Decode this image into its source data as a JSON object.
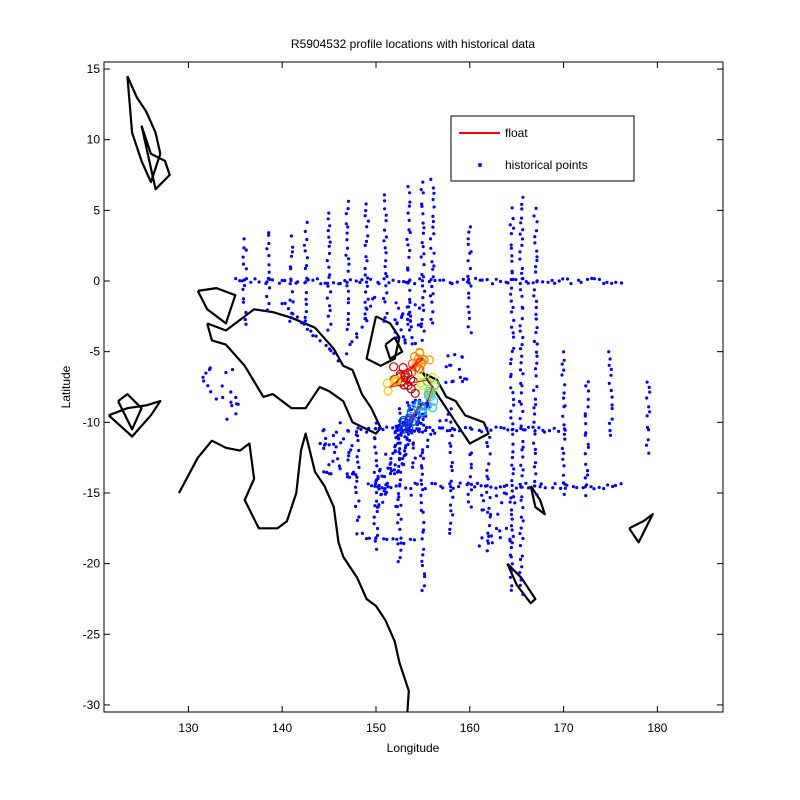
{
  "chart_data": {
    "type": "scatter",
    "title": "R5904532 profile locations with historical data",
    "xlabel": "Longitude",
    "ylabel": "Latitude",
    "xlim": [
      121,
      187
    ],
    "ylim": [
      -30.5,
      15.5
    ],
    "xticks": [
      130,
      140,
      150,
      160,
      170,
      180
    ],
    "yticks": [
      15,
      10,
      5,
      0,
      -5,
      -10,
      -15,
      -20,
      -25,
      -30
    ],
    "grid": false,
    "legend_position": "top-right",
    "legend": [
      {
        "label": "float",
        "marker": "line",
        "color": "#ff0000"
      },
      {
        "label": "historical points",
        "marker": "dot",
        "color": "#0000ff"
      }
    ],
    "historical_tracks": [
      {
        "lon": [
          138.5,
          138.5
        ],
        "lat": [
          3.5,
          -2.0
        ]
      },
      {
        "lon": [
          142.5,
          142.5
        ],
        "lat": [
          4.0,
          -3.0
        ]
      },
      {
        "lon": [
          145.0,
          145.0
        ],
        "lat": [
          5.0,
          -3.5
        ]
      },
      {
        "lon": [
          147.0,
          147.0
        ],
        "lat": [
          5.5,
          -3.5
        ]
      },
      {
        "lon": [
          149.0,
          149.0
        ],
        "lat": [
          5.5,
          -3.0
        ]
      },
      {
        "lon": [
          151.0,
          151.0
        ],
        "lat": [
          6.0,
          -3.0
        ]
      },
      {
        "lon": [
          153.5,
          153.5
        ],
        "lat": [
          6.5,
          -3.0
        ]
      },
      {
        "lon": [
          155.0,
          155.0
        ],
        "lat": [
          7.0,
          -4.0
        ]
      },
      {
        "lon": [
          156.0,
          156.0
        ],
        "lat": [
          7.0,
          -3.0
        ]
      },
      {
        "lon": [
          160.0,
          160.0
        ],
        "lat": [
          4.0,
          -3.5
        ]
      },
      {
        "lon": [
          164.5,
          164.5
        ],
        "lat": [
          5.0,
          -22.0
        ]
      },
      {
        "lon": [
          165.5,
          165.5
        ],
        "lat": [
          6.0,
          -22.0
        ]
      },
      {
        "lon": [
          167.0,
          167.0
        ],
        "lat": [
          5.0,
          -15.0
        ]
      },
      {
        "lon": [
          135.0,
          176.0
        ],
        "lat": [
          0.0,
          0.0
        ]
      },
      {
        "lon": [
          148.0,
          148.0
        ],
        "lat": [
          -11.0,
          -17.0
        ]
      },
      {
        "lon": [
          150.0,
          150.0
        ],
        "lat": [
          -10.0,
          -19.0
        ]
      },
      {
        "lon": [
          152.5,
          152.5
        ],
        "lat": [
          -9.0,
          -20.0
        ]
      },
      {
        "lon": [
          155.0,
          155.0
        ],
        "lat": [
          -12.0,
          -22.0
        ]
      },
      {
        "lon": [
          158.0,
          158.0
        ],
        "lat": [
          -10.0,
          -18.0
        ]
      },
      {
        "lon": [
          160.0,
          160.0
        ],
        "lat": [
          -12.0,
          -16.0
        ]
      },
      {
        "lon": [
          162.0,
          162.0
        ],
        "lat": [
          -11.0,
          -19.0
        ]
      },
      {
        "lon": [
          170.0,
          170.0
        ],
        "lat": [
          -5.0,
          -15.0
        ]
      },
      {
        "lon": [
          172.5,
          172.5
        ],
        "lat": [
          -7.0,
          -15.0
        ]
      },
      {
        "lon": [
          149.0,
          176.0
        ],
        "lat": [
          -14.5,
          -14.5
        ]
      },
      {
        "lon": [
          148.0,
          170.0
        ],
        "lat": [
          -10.5,
          -10.5
        ]
      },
      {
        "lon": [
          140.0,
          146.0
        ],
        "lat": [
          -1.5,
          -5.5
        ]
      },
      {
        "lon": [
          147.0,
          150.0
        ],
        "lat": [
          -5.0,
          -1.0
        ]
      },
      {
        "lon": [
          154.0,
          158.0
        ],
        "lat": [
          -13.0,
          -9.0
        ]
      },
      {
        "lon": [
          150.0,
          153.0
        ],
        "lat": [
          -16.0,
          -12.0
        ]
      },
      {
        "lon": [
          148.0,
          154.0
        ],
        "lat": [
          -18.0,
          -18.5
        ]
      },
      {
        "lon": [
          136.0,
          136.0
        ],
        "lat": [
          3.0,
          -3.0
        ]
      },
      {
        "lon": [
          141.0,
          141.0
        ],
        "lat": [
          3.0,
          -3.0
        ]
      },
      {
        "lon": [
          175.0,
          175.0
        ],
        "lat": [
          -5.0,
          -11.0
        ]
      },
      {
        "lon": [
          179.0,
          179.0
        ],
        "lat": [
          -7.0,
          -12.0
        ]
      }
    ],
    "historical_clusters": [
      {
        "lon": 153.5,
        "lat": -3.0,
        "spread": 1.5,
        "n": 30
      },
      {
        "lon": 154.5,
        "lat": -9.5,
        "spread": 1.2,
        "n": 60
      },
      {
        "lon": 153.0,
        "lat": -11.0,
        "spread": 1.0,
        "n": 40
      },
      {
        "lon": 146.0,
        "lat": -12.0,
        "spread": 2.0,
        "n": 40
      },
      {
        "lon": 152.0,
        "lat": -14.0,
        "spread": 2.0,
        "n": 40
      },
      {
        "lon": 163.0,
        "lat": -17.0,
        "spread": 2.0,
        "n": 25
      },
      {
        "lon": 133.5,
        "lat": -8.0,
        "spread": 2.0,
        "n": 20
      },
      {
        "lon": 158.5,
        "lat": -6.0,
        "spread": 1.2,
        "n": 15
      }
    ],
    "float_profiles": [
      {
        "lon": 153.0,
        "lat": -7.0,
        "color": "#8b0000"
      },
      {
        "lon": 153.5,
        "lat": -7.5,
        "color": "#b00000"
      },
      {
        "lon": 152.5,
        "lat": -6.5,
        "color": "#dd0000"
      },
      {
        "lon": 154.0,
        "lat": -6.0,
        "color": "#ff4400"
      },
      {
        "lon": 154.5,
        "lat": -5.5,
        "color": "#ff7700"
      },
      {
        "lon": 155.0,
        "lat": -5.5,
        "color": "#ff9900"
      },
      {
        "lon": 151.5,
        "lat": -7.5,
        "color": "#ffcc00"
      },
      {
        "lon": 155.5,
        "lat": -7.0,
        "color": "#ccee33"
      },
      {
        "lon": 156.0,
        "lat": -7.5,
        "color": "#66dd66"
      },
      {
        "lon": 155.5,
        "lat": -8.5,
        "color": "#33cccc"
      },
      {
        "lon": 154.5,
        "lat": -9.0,
        "color": "#00aaff"
      },
      {
        "lon": 154.0,
        "lat": -9.5,
        "color": "#0066ff"
      },
      {
        "lon": 153.5,
        "lat": -10.0,
        "color": "#0033dd"
      }
    ],
    "coastlines": [
      {
        "lon": [
          123.5,
          124.5,
          125.5,
          126.5,
          127.0,
          126.0,
          125.0,
          124.0,
          123.5
        ],
        "lat": [
          14.5,
          13.0,
          12.0,
          10.5,
          9.0,
          7.0,
          8.5,
          10.5,
          14.5
        ]
      },
      {
        "lon": [
          125.0,
          126.0,
          127.5,
          128.0,
          126.5,
          125.0
        ],
        "lat": [
          11.0,
          9.0,
          8.5,
          7.5,
          6.5,
          11.0
        ]
      },
      {
        "lon": [
          122.5,
          123.5,
          125.0,
          124.0,
          122.5
        ],
        "lat": [
          -8.5,
          -8.0,
          -9.0,
          -10.5,
          -8.5
        ]
      },
      {
        "lon": [
          121.5,
          123.5,
          125.5,
          127.0,
          126.0,
          124.0,
          121.5
        ],
        "lat": [
          -9.5,
          -9.0,
          -8.8,
          -8.5,
          -9.5,
          -11.0,
          -9.5
        ]
      },
      {
        "lon": [
          131.0,
          133.0,
          135.0,
          134.0,
          132.0,
          131.0
        ],
        "lat": [
          -0.7,
          -0.5,
          -1.0,
          -3.0,
          -2.0,
          -0.7
        ]
      },
      {
        "lon": [
          132.0,
          134.0,
          137.0,
          139.0,
          141.0,
          143.5,
          145.5,
          146.5,
          147.5,
          148.5,
          149.5,
          150.5,
          150.0,
          147.5,
          146.5,
          145.0,
          144.0,
          142.5,
          141.0,
          139.0,
          138.0,
          136.0,
          134.0,
          132.5,
          132.0
        ],
        "lat": [
          -3.0,
          -3.5,
          -2.0,
          -2.2,
          -2.6,
          -3.3,
          -4.8,
          -6.0,
          -6.3,
          -8.0,
          -9.0,
          -10.4,
          -10.8,
          -10.0,
          -8.5,
          -7.8,
          -7.5,
          -9.0,
          -9.0,
          -8.0,
          -8.2,
          -6.0,
          -4.5,
          -4.2,
          -3.0
        ]
      },
      {
        "lon": [
          150.0,
          151.5,
          152.5,
          152.0,
          150.5,
          149.0,
          150.0
        ],
        "lat": [
          -2.5,
          -3.0,
          -4.0,
          -5.5,
          -6.0,
          -5.5,
          -2.5
        ]
      },
      {
        "lon": [
          151.0,
          152.0,
          152.8,
          151.5,
          151.0
        ],
        "lat": [
          -4.5,
          -4.0,
          -5.0,
          -5.5,
          -4.5
        ]
      },
      {
        "lon": [
          155.0,
          156.5,
          157.5,
          158.5,
          159.5,
          161.5,
          162.0,
          160.0,
          157.5,
          155.0
        ],
        "lat": [
          -6.5,
          -7.0,
          -8.2,
          -8.5,
          -9.5,
          -10.0,
          -10.8,
          -11.5,
          -9.0,
          -6.5
        ]
      },
      {
        "lon": [
          129.0,
          131.0,
          132.5,
          134.0,
          135.5,
          136.5,
          137.0,
          136.0,
          137.5,
          139.5,
          140.5,
          141.5,
          142.0,
          142.5,
          143.5,
          144.5,
          145.5,
          146.0,
          146.5,
          147.0,
          148.0,
          149.0,
          150.0,
          151.0,
          152.0,
          152.5,
          153.0,
          153.5,
          153.3
        ],
        "lat": [
          -15.0,
          -12.5,
          -11.3,
          -11.8,
          -12.0,
          -11.5,
          -14.0,
          -15.5,
          -17.5,
          -17.5,
          -17.0,
          -15.0,
          -12.0,
          -10.8,
          -13.5,
          -14.5,
          -16.0,
          -18.5,
          -19.5,
          -20.0,
          -21.0,
          -22.5,
          -23.0,
          -24.0,
          -25.5,
          -27.0,
          -28.0,
          -29.0,
          -31.0
        ]
      },
      {
        "lon": [
          164.0,
          165.5,
          167.0,
          166.5,
          165.0,
          164.0
        ],
        "lat": [
          -20.0,
          -21.0,
          -22.5,
          -22.8,
          -21.5,
          -20.0
        ]
      },
      {
        "lon": [
          166.5,
          167.5,
          168.0,
          167.0,
          166.5
        ],
        "lat": [
          -14.5,
          -15.5,
          -16.5,
          -16.0,
          -14.5
        ]
      },
      {
        "lon": [
          177.0,
          178.5,
          179.5,
          178.0,
          177.0
        ],
        "lat": [
          -17.5,
          -17.0,
          -16.5,
          -18.5,
          -17.5
        ]
      }
    ]
  }
}
